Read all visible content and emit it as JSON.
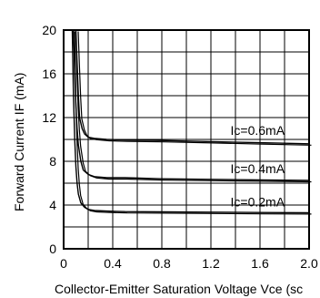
{
  "chart_data": {
    "type": "line",
    "xlabel": "Collector-Emitter Saturation Voltage Vce (sc",
    "ylabel": "Forward Current IF (mA)",
    "xlim": [
      0,
      2.0
    ],
    "ylim": [
      0,
      20
    ],
    "x_ticks": [
      "0",
      "0.4",
      "0.8",
      "1.2",
      "1.6",
      "2.0"
    ],
    "y_ticks": [
      "0",
      "4",
      "8",
      "12",
      "16",
      "20"
    ],
    "grid": true,
    "series": [
      {
        "name": "Ic=0.6mA",
        "x": [
          0.1,
          0.11,
          0.12,
          0.13,
          0.15,
          0.17,
          0.2,
          0.25,
          0.35,
          0.5,
          0.8,
          1.2,
          1.6,
          2.0
        ],
        "y": [
          20,
          17,
          14,
          12,
          11,
          10.5,
          10.2,
          10.1,
          10.0,
          9.95,
          9.9,
          9.8,
          9.7,
          9.6
        ]
      },
      {
        "name": "Ic=0.4mA",
        "x": [
          0.08,
          0.09,
          0.1,
          0.11,
          0.12,
          0.14,
          0.16,
          0.2,
          0.25,
          0.35,
          0.5,
          0.8,
          1.2,
          1.6,
          2.0
        ],
        "y": [
          20,
          16,
          13,
          11,
          9.5,
          8.0,
          7.2,
          6.8,
          6.6,
          6.5,
          6.5,
          6.4,
          6.35,
          6.3,
          6.25
        ]
      },
      {
        "name": "Ic=0.2mA",
        "x": [
          0.07,
          0.08,
          0.09,
          0.1,
          0.11,
          0.12,
          0.14,
          0.17,
          0.2,
          0.25,
          0.35,
          0.5,
          0.8,
          1.2,
          1.6,
          2.0
        ],
        "y": [
          20,
          14,
          10,
          7.5,
          6.0,
          5.0,
          4.2,
          3.8,
          3.6,
          3.5,
          3.45,
          3.4,
          3.38,
          3.35,
          3.32,
          3.3
        ]
      }
    ],
    "annotations": [
      "Ic=0.6mA",
      "Ic=0.4mA",
      "Ic=0.2mA"
    ]
  }
}
